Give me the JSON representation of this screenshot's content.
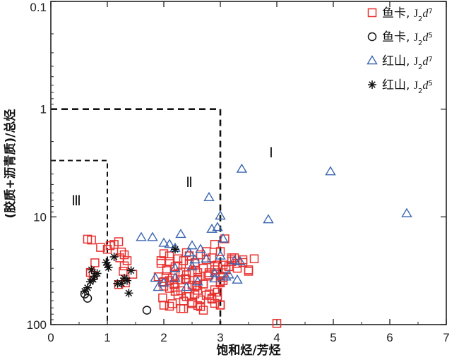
{
  "chart_data": {
    "type": "scatter",
    "xlabel": "饱和烃/芳烃",
    "ylabel": "(胶质+沥青质)/总烃",
    "xlim": [
      0,
      7
    ],
    "ylim": [
      0.1,
      100
    ],
    "y_scale": "reciprocal-log",
    "x_ticks": [
      "0",
      "1",
      "2",
      "3",
      "4",
      "5",
      "6",
      "7"
    ],
    "y_ticks": [
      "0.1",
      "1",
      "10",
      "100"
    ],
    "legend_position": "top-right",
    "regions": [
      {
        "label": "Ⅰ",
        "x": 3.9,
        "y": 2.8
      },
      {
        "label": "Ⅱ",
        "x": 2.45,
        "y": 5.3
      },
      {
        "label": "Ⅲ",
        "x": 0.45,
        "y": 7.8
      }
    ],
    "boundaries": [
      {
        "x": [
          0,
          3,
          3
        ],
        "y": [
          1,
          1,
          100
        ]
      },
      {
        "x": [
          0,
          1,
          1
        ],
        "y": [
          3,
          3,
          100
        ]
      }
    ],
    "legend": [
      {
        "location": "鱼卡",
        "formation": "J",
        "sub": "2",
        "member": "d",
        "sup": "7",
        "marker": "square",
        "color": "#e8312f"
      },
      {
        "location": "鱼卡",
        "formation": "J",
        "sub": "2",
        "member": "d",
        "sup": "5",
        "marker": "circle",
        "color": "#111111"
      },
      {
        "location": "红山",
        "formation": "J",
        "sub": "2",
        "member": "d",
        "sup": "7",
        "marker": "triangle",
        "color": "#3b66b0"
      },
      {
        "location": "红山",
        "formation": "J",
        "sub": "2",
        "member": "d",
        "sup": "5",
        "marker": "asterisk",
        "color": "#111111"
      }
    ],
    "series": [
      {
        "name": "鱼卡，J2d7",
        "marker": "square",
        "color": "#e8312f",
        "x": [
          0.65,
          0.72,
          0.88,
          0.78,
          0.7,
          0.75,
          1.0,
          1.05,
          1.12,
          1.2,
          1.25,
          1.22,
          1.3,
          1.35,
          1.45,
          1.3,
          1.32,
          1.2,
          1.28,
          1.95,
          2.0,
          2.05,
          2.1,
          2.15,
          2.2,
          2.25,
          2.3,
          2.35,
          2.4,
          2.45,
          2.5,
          2.55,
          2.6,
          2.65,
          2.7,
          2.75,
          2.8,
          2.85,
          2.9,
          2.95,
          3.0,
          1.9,
          2.0,
          2.1,
          2.2,
          2.3,
          2.4,
          2.5,
          2.6,
          2.7,
          2.8,
          2.9,
          3.0,
          3.05,
          3.1,
          2.25,
          2.35,
          2.45,
          2.55,
          2.65,
          2.75,
          2.85,
          2.95,
          3.1,
          3.2,
          2.0,
          2.1,
          2.3,
          2.5,
          2.6,
          2.7,
          2.9,
          3.0,
          3.15,
          3.2,
          3.25,
          3.3,
          3.4,
          3.5,
          3.6,
          2.1,
          2.2,
          2.4,
          2.6,
          2.8,
          3.0,
          3.05,
          1.98,
          2.15,
          2.35,
          2.5,
          2.65,
          2.85,
          3.0,
          2.0,
          2.3,
          2.55,
          2.7,
          2.95,
          2.05,
          2.2,
          2.45,
          2.6,
          2.9,
          1.95,
          2.1,
          2.25,
          2.4,
          2.55,
          2.75,
          3.05,
          3.5,
          1.98,
          2.18,
          2.38,
          2.58,
          2.78,
          3.0,
          3.08,
          2.9,
          3.2,
          3.3,
          3.4,
          4.0
        ],
        "y": [
          16.1,
          16.4,
          19.2,
          26.7,
          32.8,
          35.1,
          20.0,
          18.5,
          18.0,
          17.0,
          21.2,
          24.0,
          22.5,
          25.5,
          34.1,
          28.5,
          41.0,
          42.5,
          32.0,
          27.0,
          22.0,
          31.5,
          26.0,
          37.0,
          29.0,
          24.5,
          32.5,
          25.5,
          38.0,
          23.0,
          33.0,
          27.0,
          36.5,
          22.5,
          30.0,
          25.0,
          34.5,
          24.0,
          31.0,
          28.0,
          35.5,
          36.0,
          40.0,
          39.0,
          45.0,
          38.5,
          34.5,
          43.0,
          38.0,
          42.0,
          33.0,
          47.5,
          40.0,
          36.5,
          31.0,
          53.0,
          60.5,
          55.0,
          52.0,
          59.0,
          53.5,
          57.0,
          55.5,
          30.5,
          26.0,
          66.0,
          67.5,
          71.0,
          62.5,
          66.5,
          73.5,
          63.5,
          65.5,
          29.0,
          25.0,
          24.0,
          30.0,
          26.5,
          32.0,
          24.5,
          46.0,
          49.0,
          55.0,
          48.0,
          52.0,
          41.0,
          39.0,
          56.5,
          64.0,
          71.0,
          64.0,
          68.0,
          58.0,
          66.0,
          44.0,
          48.5,
          45.0,
          42.0,
          50.0,
          30.5,
          35.0,
          27.5,
          33.0,
          29.0,
          25.5,
          23.0,
          28.5,
          21.5,
          26.5,
          21.0,
          28.0,
          31.0,
          40.5,
          42.5,
          37.5,
          43.5,
          35.5,
          21.0,
          16.0,
          18.0,
          24.0,
          27.0,
          25.0,
          97.5
        ]
      },
      {
        "name": "鱼卡，J2d5",
        "marker": "circle",
        "color": "#111111",
        "x": [
          0.6,
          0.65,
          1.7
        ],
        "y": [
          52.0,
          57.0,
          73.5
        ]
      },
      {
        "name": "红山，J2d7",
        "marker": "triangle",
        "color": "#3b66b0",
        "x": [
          3.38,
          4.95,
          6.3,
          2.8,
          3.0,
          3.85,
          1.6,
          1.8,
          2.2,
          2.3,
          2.1,
          2.0,
          2.5,
          2.85,
          2.95,
          3.05,
          2.45,
          2.65,
          2.55,
          2.75,
          3.0,
          3.25,
          3.35,
          2.6,
          2.9,
          3.1,
          3.15,
          2.4,
          2.2,
          2.0,
          1.85,
          1.9,
          3.3,
          2.9,
          2.2,
          2.5
        ],
        "y": [
          3.6,
          3.8,
          9.3,
          6.6,
          9.8,
          10.6,
          15.5,
          15.5,
          19.5,
          14.5,
          18.0,
          17.5,
          18.5,
          13.0,
          12.5,
          16.0,
          21.5,
          20.0,
          25.0,
          24.5,
          23.0,
          25.5,
          26.0,
          40.0,
          33.5,
          36.0,
          34.5,
          45.0,
          37.0,
          41.0,
          37.0,
          45.0,
          38.5,
          37.5,
          30.0,
          29.0
        ]
      },
      {
        "name": "红山，J2d5",
        "marker": "asterisk",
        "color": "#111111",
        "x": [
          0.6,
          0.65,
          0.7,
          0.72,
          0.75,
          0.78,
          0.82,
          0.98,
          1.0,
          1.02,
          1.12,
          1.18,
          1.25,
          1.3,
          1.35,
          1.38,
          1.42,
          2.2
        ],
        "y": [
          49.0,
          45.5,
          40.0,
          31.0,
          38.0,
          35.5,
          33.5,
          26.5,
          28.0,
          29.5,
          23.5,
          41.5,
          41.5,
          37.0,
          39.0,
          51.0,
          31.5,
          20.0
        ]
      }
    ]
  }
}
